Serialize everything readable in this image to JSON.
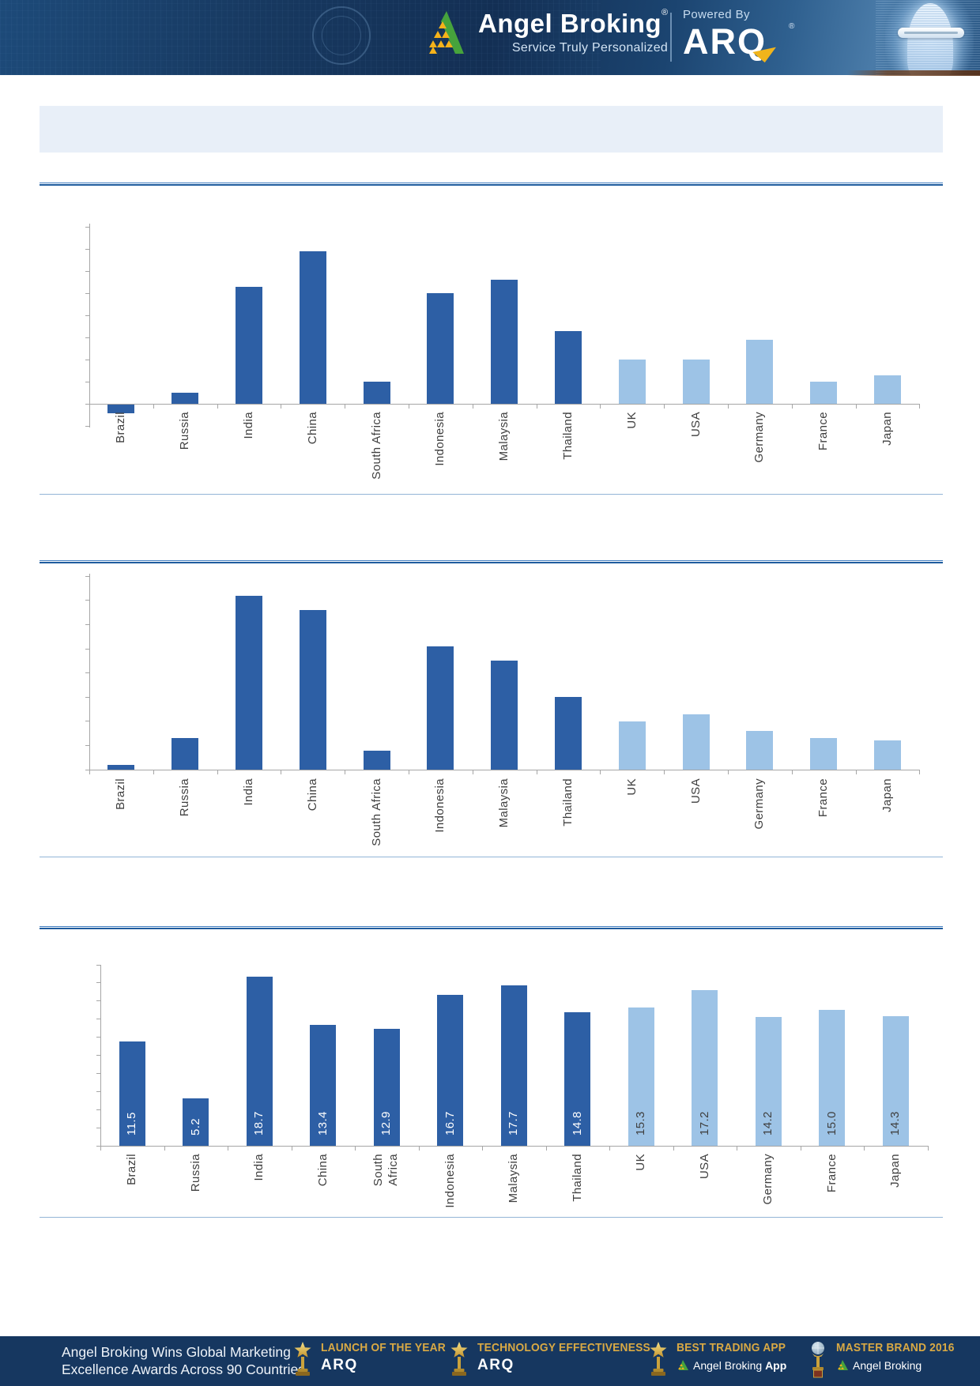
{
  "header": {
    "brand_name": "Angel Broking",
    "brand_reg": "®",
    "tagline": "Service Truly Personalized",
    "powered_by_label": "Powered By",
    "powered_brand": "ARQ",
    "powered_reg": "®",
    "head_graphic": "holographic-robot-head"
  },
  "title_banner": {
    "text": ""
  },
  "colors": {
    "bar_dark_emerging": "#2d5fa5",
    "bar_light_developed": "#9dc3e6",
    "axis": "#a6a6a6",
    "label_text": "#3f3f3f",
    "value_label_on_dark": "#ffffff",
    "value_label_on_light": "#404040",
    "rule_bold": "#1f5c9e",
    "rule_thin": "#93b5d7",
    "banner_bg": "#e8eff8",
    "header_bg": "#16365d",
    "footer_bg": "#163760",
    "footer_gold": "#d9a944"
  },
  "chart_data": [
    {
      "type": "bar",
      "title": "",
      "categories": [
        "Brazil",
        "Russia",
        "India",
        "China",
        "South Africa",
        "Indonesia",
        "Malaysia",
        "Thailand",
        "UK",
        "USA",
        "Germany",
        "France",
        "Japan"
      ],
      "values": [
        -0.4,
        0.5,
        5.3,
        6.9,
        1.0,
        5.0,
        5.6,
        3.3,
        2.0,
        2.0,
        2.9,
        1.0,
        1.3
      ],
      "xlabel": "",
      "ylabel": "",
      "ylim": [
        -1,
        8
      ],
      "y_tick_step": 1,
      "y_tick_labels_visible": false,
      "gridlines": false,
      "legend": "none",
      "data_labels": false,
      "color_split_index": 8
    },
    {
      "type": "bar",
      "title": "",
      "categories": [
        "Brazil",
        "Russia",
        "India",
        "China",
        "South Africa",
        "Indonesia",
        "Malaysia",
        "Thailand",
        "UK",
        "USA",
        "Germany",
        "France",
        "Japan"
      ],
      "values": [
        0.2,
        1.3,
        7.2,
        6.6,
        0.8,
        5.1,
        4.5,
        3.0,
        2.0,
        2.3,
        1.6,
        1.3,
        1.2
      ],
      "xlabel": "",
      "ylabel": "",
      "ylim": [
        0,
        8
      ],
      "y_tick_step": 1,
      "y_tick_labels_visible": false,
      "gridlines": false,
      "legend": "none",
      "data_labels": false,
      "color_split_index": 8
    },
    {
      "type": "bar",
      "title": "",
      "categories": [
        "Brazil",
        "Russia",
        "India",
        "China",
        "South Africa",
        "Indonesia",
        "Malaysia",
        "Thailand",
        "UK",
        "USA",
        "Germany",
        "France",
        "Japan"
      ],
      "values": [
        11.5,
        5.2,
        18.7,
        13.4,
        12.9,
        16.7,
        17.7,
        14.8,
        15.3,
        17.2,
        14.2,
        15.0,
        14.3
      ],
      "xlabel": "",
      "ylabel": "",
      "ylim": [
        0,
        20
      ],
      "y_tick_step": 2,
      "y_tick_labels_visible": false,
      "gridlines": false,
      "legend": "none",
      "data_labels": true,
      "data_label_format": "one_decimal",
      "color_split_index": 8
    }
  ],
  "footer": {
    "headline_line1": "Angel Broking Wins Global Marketing",
    "headline_line2": "Excellence Awards Across 90 Countries",
    "awards": [
      {
        "icon": "star-trophy",
        "title": "LAUNCH OF THE YEAR",
        "product": "ARQ"
      },
      {
        "icon": "star-trophy",
        "title": "TECHNOLOGY EFFECTIVENESS",
        "product": "ARQ"
      },
      {
        "icon": "star-trophy",
        "title": "BEST TRADING APP",
        "product": "Angel Broking",
        "product_bold": "App"
      },
      {
        "icon": "globe-trophy",
        "title": "MASTER BRAND 2016",
        "product": "Angel Broking"
      }
    ]
  }
}
